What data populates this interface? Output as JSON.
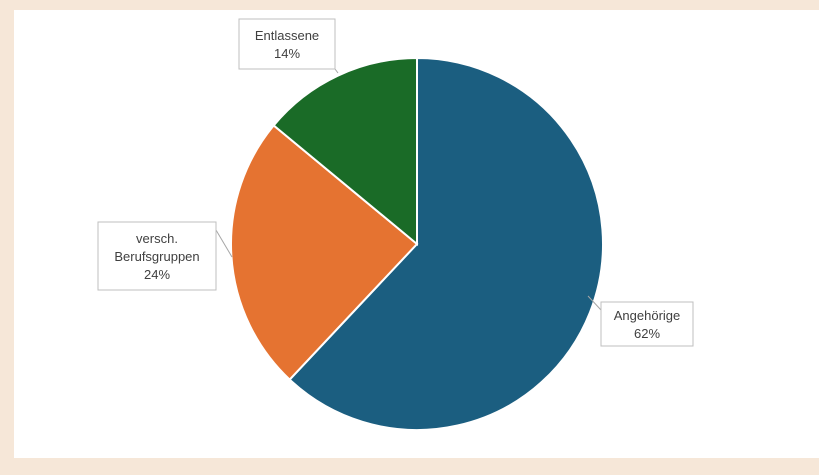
{
  "chart_data": {
    "type": "pie",
    "start_angle_deg": 0,
    "direction": "clockwise",
    "slices": [
      {
        "label": "Angehörige",
        "value": 62,
        "display": "62%",
        "color": "#1b5e80"
      },
      {
        "label": "versch. Berufsgruppen",
        "value": 24,
        "display": "24%",
        "color": "#e57331",
        "label_lines": [
          "versch.",
          "Berufsgruppen"
        ]
      },
      {
        "label": "Entlassene",
        "value": 14,
        "display": "14%",
        "color": "#1a6b27"
      }
    ],
    "legend": "none",
    "background": "#f6e7d8",
    "plot_background": "#ffffff"
  }
}
